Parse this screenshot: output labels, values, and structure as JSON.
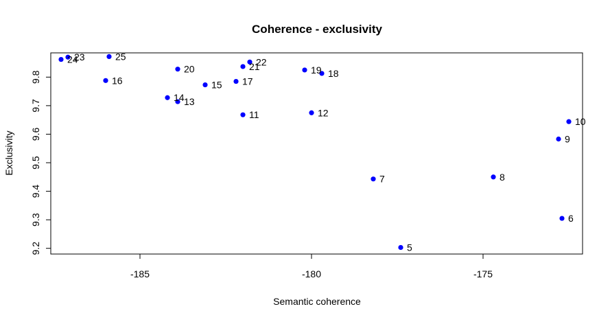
{
  "chart_data": {
    "type": "scatter",
    "title": "Coherence - exclusivity",
    "xlabel": "Semantic coherence",
    "ylabel": "Exclusivity",
    "xlim": [
      -187.6,
      -172.1
    ],
    "ylim": [
      9.18,
      9.885
    ],
    "x_ticks": [
      -185,
      -180,
      -175
    ],
    "y_ticks": [
      9.2,
      9.3,
      9.4,
      9.5,
      9.6,
      9.7,
      9.8
    ],
    "grid": false,
    "legend": "none",
    "point_color": "#0000ff",
    "points": [
      {
        "label": "5",
        "x": -177.4,
        "y": 9.203
      },
      {
        "label": "6",
        "x": -172.7,
        "y": 9.305
      },
      {
        "label": "7",
        "x": -178.2,
        "y": 9.443
      },
      {
        "label": "8",
        "x": -174.7,
        "y": 9.45
      },
      {
        "label": "9",
        "x": -172.8,
        "y": 9.583
      },
      {
        "label": "10",
        "x": -172.5,
        "y": 9.644
      },
      {
        "label": "11",
        "x": -182.0,
        "y": 9.668
      },
      {
        "label": "12",
        "x": -180.0,
        "y": 9.675
      },
      {
        "label": "13",
        "x": -183.9,
        "y": 9.714
      },
      {
        "label": "14",
        "x": -184.2,
        "y": 9.728
      },
      {
        "label": "15",
        "x": -183.1,
        "y": 9.773
      },
      {
        "label": "16",
        "x": -186.0,
        "y": 9.788
      },
      {
        "label": "17",
        "x": -182.2,
        "y": 9.785
      },
      {
        "label": "18",
        "x": -179.7,
        "y": 9.813
      },
      {
        "label": "19",
        "x": -180.2,
        "y": 9.825
      },
      {
        "label": "20",
        "x": -183.9,
        "y": 9.828
      },
      {
        "label": "21",
        "x": -182.0,
        "y": 9.837
      },
      {
        "label": "22",
        "x": -181.8,
        "y": 9.853
      },
      {
        "label": "23",
        "x": -187.1,
        "y": 9.87
      },
      {
        "label": "24",
        "x": -187.3,
        "y": 9.862
      },
      {
        "label": "25",
        "x": -185.9,
        "y": 9.872
      }
    ]
  }
}
